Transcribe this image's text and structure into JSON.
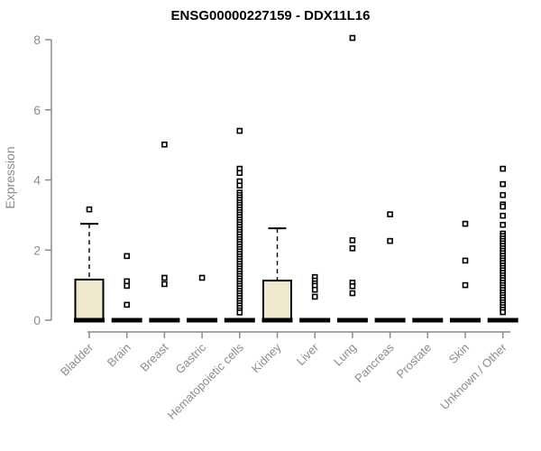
{
  "chart_data": {
    "type": "boxplot",
    "title": "ENSG00000227159 - DDX11L16",
    "ylabel": "Expression",
    "xlabel": "",
    "ylim": [
      0,
      8
    ],
    "yticks": [
      0,
      2,
      4,
      6,
      8
    ],
    "grid": false,
    "legend": "none",
    "categories": [
      "Bladder",
      "Brain",
      "Breast",
      "Gastric",
      "Hematopoietic cells",
      "Kidney",
      "Liver",
      "Lung",
      "Pancreas",
      "Prostate",
      "Skin",
      "Unknown / Other"
    ],
    "colors": {
      "box_fill": "#EEE8CD",
      "box_stroke": "#000000",
      "median": "#000000",
      "axis": "#8C8C8C",
      "tick_text": "#8C8C8C",
      "title": "#000000",
      "outlier_fill": "#FFFFFF",
      "outlier_stroke": "#000000"
    },
    "groups": [
      {
        "category": "Bladder",
        "q1": 0,
        "median": 0,
        "q3": 1.16,
        "whisker_low": 0,
        "whisker_high": 2.75,
        "outliers": [
          3.16
        ]
      },
      {
        "category": "Brain",
        "q1": 0,
        "median": 0,
        "q3": 0,
        "whisker_low": 0,
        "whisker_high": 0,
        "outliers": [
          1.83,
          1.11,
          0.98,
          0.44
        ]
      },
      {
        "category": "Breast",
        "q1": 0,
        "median": 0,
        "q3": 0,
        "whisker_low": 0,
        "whisker_high": 0,
        "outliers": [
          5.01,
          1.21,
          1.03
        ]
      },
      {
        "category": "Gastric",
        "q1": 0,
        "median": 0,
        "q3": 0,
        "whisker_low": 0,
        "whisker_high": 0,
        "outliers": [
          1.21
        ]
      },
      {
        "category": "Hematopoietic cells",
        "q1": 0,
        "median": 0,
        "q3": 0,
        "whisker_low": 0,
        "whisker_high": 0,
        "outliers": [
          5.4,
          4.32,
          4.2,
          3.96,
          3.84,
          3.64,
          3.57,
          3.5,
          3.43,
          3.36,
          3.29,
          3.22,
          3.15,
          3.08,
          3.01,
          2.94,
          2.87,
          2.8,
          2.73,
          2.66,
          2.59,
          2.52,
          2.45,
          2.38,
          2.31,
          2.24,
          2.17,
          2.1,
          2.03,
          1.96,
          1.89,
          1.82,
          1.75,
          1.68,
          1.61,
          1.54,
          1.47,
          1.4,
          1.33,
          1.26,
          1.19,
          1.12,
          1.05,
          0.98,
          0.91,
          0.84,
          0.77,
          0.7,
          0.63,
          0.56,
          0.49,
          0.42,
          0.35,
          0.28,
          0.22
        ]
      },
      {
        "category": "Kidney",
        "q1": 0,
        "median": 0,
        "q3": 1.13,
        "whisker_low": 0,
        "whisker_high": 2.62,
        "outliers": []
      },
      {
        "category": "Liver",
        "q1": 0,
        "median": 0,
        "q3": 0,
        "whisker_low": 0,
        "whisker_high": 0,
        "outliers": [
          1.23,
          1.13,
          1.05,
          0.98,
          0.87,
          0.67
        ]
      },
      {
        "category": "Lung",
        "q1": 0,
        "median": 0,
        "q3": 0,
        "whisker_low": 0,
        "whisker_high": 0,
        "outliers": [
          8.05,
          2.28,
          2.05,
          1.07,
          0.97,
          0.77
        ]
      },
      {
        "category": "Pancreas",
        "q1": 0,
        "median": 0,
        "q3": 0,
        "whisker_low": 0,
        "whisker_high": 0,
        "outliers": [
          3.02,
          2.26
        ]
      },
      {
        "category": "Prostate",
        "q1": 0,
        "median": 0,
        "q3": 0,
        "whisker_low": 0,
        "whisker_high": 0,
        "outliers": []
      },
      {
        "category": "Skin",
        "q1": 0,
        "median": 0,
        "q3": 0,
        "whisker_low": 0,
        "whisker_high": 0,
        "outliers": [
          2.75,
          1.7,
          1.0
        ]
      },
      {
        "category": "Unknown / Other",
        "q1": 0,
        "median": 0,
        "q3": 0,
        "whisker_low": 0,
        "whisker_high": 0,
        "outliers": [
          4.32,
          3.88,
          3.57,
          3.3,
          3.24,
          2.98,
          2.72,
          2.47,
          2.4,
          2.33,
          2.26,
          2.19,
          2.12,
          2.05,
          1.98,
          1.91,
          1.84,
          1.77,
          1.7,
          1.63,
          1.56,
          1.49,
          1.42,
          1.35,
          1.28,
          1.21,
          1.14,
          1.07,
          1.0,
          0.93,
          0.86,
          0.79,
          0.72,
          0.65,
          0.58,
          0.51,
          0.44,
          0.37,
          0.3,
          0.23
        ]
      }
    ]
  }
}
